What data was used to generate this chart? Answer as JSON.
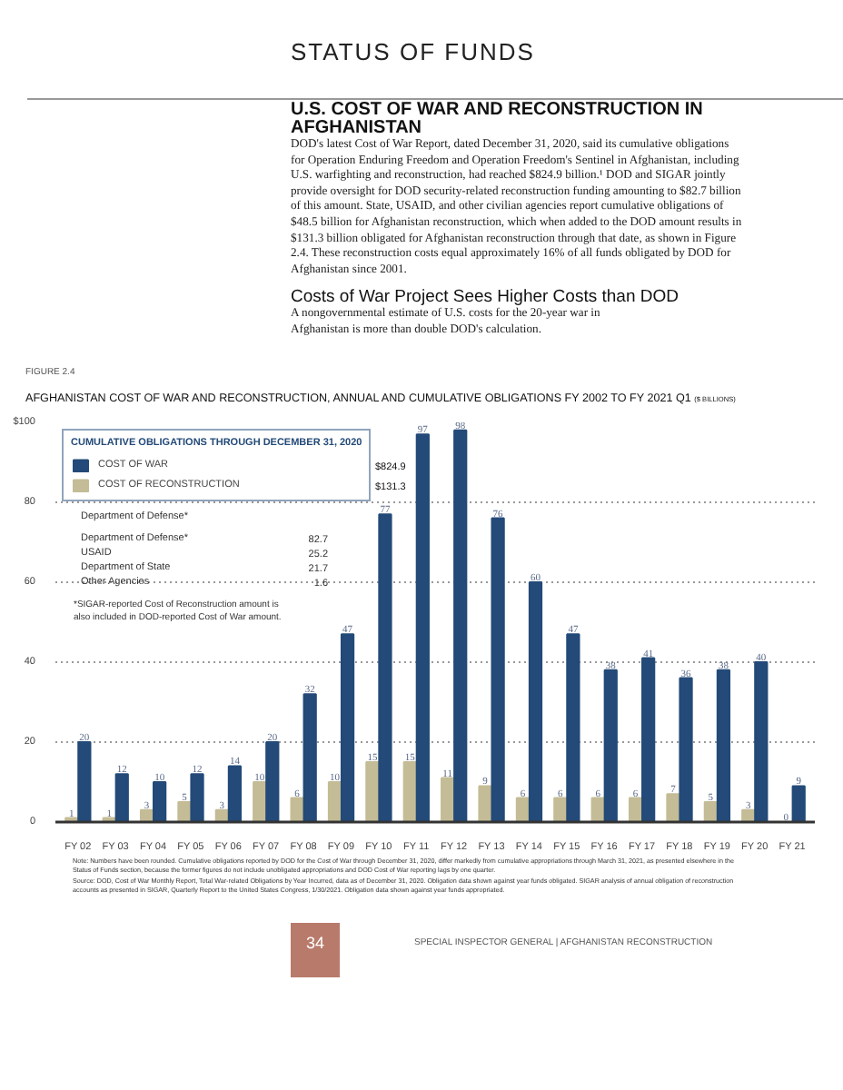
{
  "chart_data": {
    "type": "bar",
    "title": "AFGHANISTAN COST OF WAR AND RECONSTRUCTION, ANNUAL AND CUMULATIVE OBLIGATIONS FY 2002 TO FY 2021 Q1",
    "subtitle": "($ BILLIONS)",
    "categories": [
      "FY 02",
      "FY 03",
      "FY 04",
      "FY 05",
      "FY 06",
      "FY 07",
      "FY 08",
      "FY 09",
      "FY 10",
      "FY 11",
      "FY 12",
      "FY 13",
      "FY 14",
      "FY 15",
      "FY 16",
      "FY 17",
      "FY 18",
      "FY 19",
      "FY 20",
      "FY 21"
    ],
    "series": [
      {
        "name": "COST OF RECONSTRUCTION",
        "color": "#c4bc96",
        "values": [
          1,
          1,
          3,
          5,
          3,
          10,
          6,
          10,
          15,
          15,
          11,
          9,
          6,
          6,
          6,
          6,
          7,
          5,
          3,
          0
        ]
      },
      {
        "name": "COST OF WAR",
        "color": "#234a78",
        "values": [
          20,
          12,
          10,
          12,
          14,
          20,
          32,
          47,
          77,
          97,
          98,
          76,
          60,
          47,
          38,
          41,
          36,
          38,
          40,
          9
        ]
      }
    ],
    "ylim": [
      0,
      100
    ],
    "yticks": [
      0,
      20,
      40,
      60,
      80,
      {
        "value": 100,
        "label": "$100"
      }
    ],
    "grid": "y",
    "legend": "top left",
    "legend_title": "CUMULATIVE OBLIGATIONS THROUGH DECEMBER 31, 2020",
    "data_labels": true,
    "annotations": [
      "STATUS OF FUNDS",
      "U.S. COST OF WAR AND RECONSTRUCTION IN AFGHANISTAN",
      "DOD's latest Cost of War Report, dated December 31, 2020, said its cumulative obligations for Operation Enduring Freedom and Operation Freedom's Sentinel in Afghanistan, including U.S. warfighting and reconstruction, had reached $824.9 billion.¹ DOD and SIGAR jointly provide oversight for DOD security-related reconstruction funding amounting to $82.7 billion of this amount. State, USAID, and other civilian agencies report cumulative obligations of $48.5 billion for Afghanistan reconstruction, which when added to the DOD amount results in $131.3 billion obligated for Afghanistan reconstruction through that date, as shown in Figure 2.4. These reconstruction costs equal approximately 16% of all funds obligated by DOD for Afghanistan since 2001.",
      "Costs of War Project Sees Higher Costs than DOD",
      "A nongovernmental estimate of U.S. costs for the 20-year war in Afghanistan is more than double DOD's calculation.",
      "FIGURE 2.4",
      "$824.9",
      "Department of Defense*",
      "$131.3",
      "Department of Defense*",
      "82.7",
      "USAID",
      "25.2",
      "Department of State",
      "21.7",
      "Other Agencies",
      "1.6",
      "*SIGAR-reported Cost of Reconstruction amount is also included in DOD-reported Cost of War amount.",
      "Note: Numbers have been rounded. Cumulative obligations reported by DOD for the Cost of War through December 31, 2020, differ markedly from cumulative appropriations through March 31, 2021, as presented elsewhere in the Status of Funds section, because the former figures do not include unobligated appropriations and DOD Cost of War reporting lags by one quarter.",
      "Source: DOD, Cost of War Monthly Report, Total War-related Obligations by Year Incurred, data as of December 31, 2020. Obligation data shown against year funds obligated. SIGAR analysis of annual obligation of reconstruction accounts as presented in SIGAR, Quarterly Report to the United States Congress, 1/30/2021. Obligation data shown against year funds appropriated.",
      "34",
      "SPECIAL INSPECTOR GENERAL | AFGHANISTAN RECONSTRUCTION"
    ]
  }
}
